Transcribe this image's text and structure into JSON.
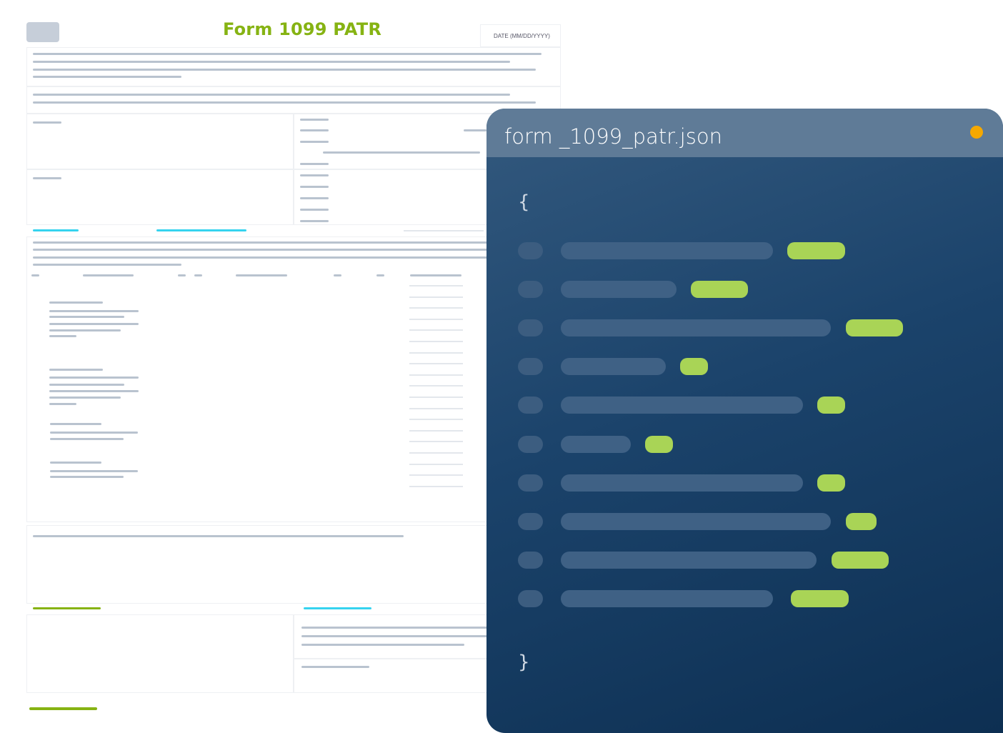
{
  "form": {
    "title": "Form 1099 PATR",
    "date_label": "DATE (MM/DD/YYYY)",
    "accent_green": "#86b313",
    "accent_cyan": "#35d3ef"
  },
  "json_panel": {
    "filename": "form _1099_patr.json",
    "open_brace": "{",
    "close_brace": "}",
    "status_dot_color": "#f5a800",
    "value_color": "#a9d456",
    "row_count": 10
  }
}
